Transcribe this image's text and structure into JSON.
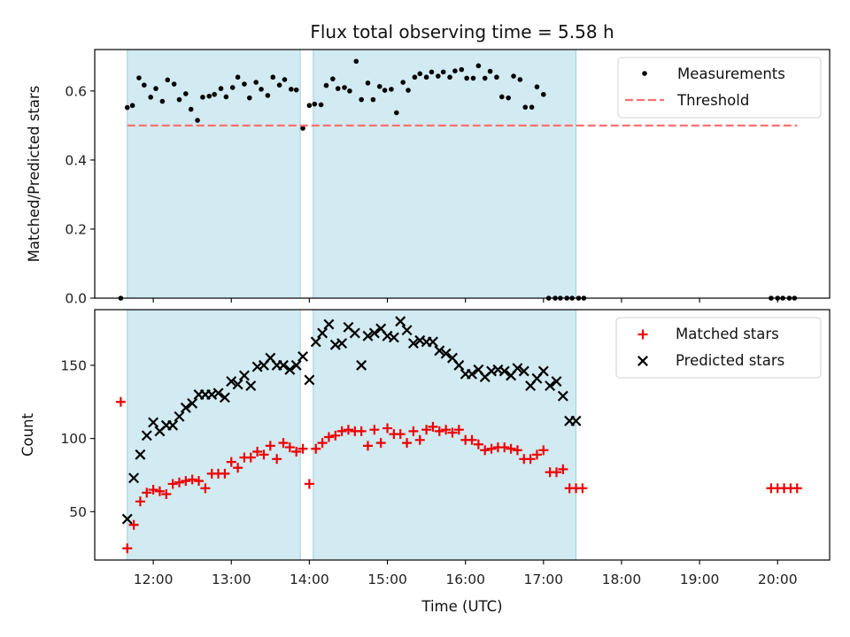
{
  "chart_data": [
    {
      "type": "scatter",
      "title": "Flux total observing time = 5.58 h",
      "xlabel": "",
      "ylabel": "Matched/Predicted stars",
      "xlim": [
        "11:15",
        "20:40"
      ],
      "ylim": [
        0,
        0.72
      ],
      "y_ticks": [
        0.0,
        0.2,
        0.4,
        0.6
      ],
      "y_tick_labels": [
        "0.0",
        "0.2",
        "0.4",
        "0.6"
      ],
      "shaded_intervals": [
        [
          "11:40",
          "13:53"
        ],
        [
          "14:03",
          "17:25"
        ]
      ],
      "shade_color": "#add8e6",
      "legend_position": "top-right",
      "series": [
        {
          "name": "Measurements",
          "marker": "dot",
          "color": "#000000",
          "x": [
            "11:35",
            "11:40",
            "11:44",
            "11:49",
            "11:53",
            "11:58",
            "12:02",
            "12:07",
            "12:11",
            "12:16",
            "12:20",
            "12:25",
            "12:29",
            "12:34",
            "12:38",
            "12:43",
            "12:47",
            "12:52",
            "12:56",
            "13:01",
            "13:05",
            "13:10",
            "13:14",
            "13:19",
            "13:23",
            "13:28",
            "13:32",
            "13:37",
            "13:41",
            "13:46",
            "13:50",
            "13:55",
            "14:00",
            "14:04",
            "14:09",
            "14:13",
            "14:18",
            "14:22",
            "14:27",
            "14:31",
            "14:36",
            "14:40",
            "14:45",
            "14:49",
            "14:54",
            "14:58",
            "15:03",
            "15:07",
            "15:12",
            "15:16",
            "15:21",
            "15:25",
            "15:30",
            "15:34",
            "15:39",
            "15:43",
            "15:48",
            "15:52",
            "15:57",
            "16:01",
            "16:06",
            "16:10",
            "16:15",
            "16:19",
            "16:24",
            "16:28",
            "16:33",
            "16:37",
            "16:42",
            "16:46",
            "16:51",
            "16:55",
            "17:00",
            "17:04",
            "17:09",
            "17:13",
            "17:18",
            "17:22",
            "17:27",
            "17:31",
            "19:55",
            "20:00",
            "20:04",
            "20:09",
            "20:13"
          ],
          "y": [
            0.0,
            0.552,
            0.558,
            0.638,
            0.617,
            0.582,
            0.607,
            0.57,
            0.632,
            0.62,
            0.575,
            0.592,
            0.547,
            0.515,
            0.582,
            0.585,
            0.59,
            0.607,
            0.583,
            0.61,
            0.64,
            0.62,
            0.58,
            0.625,
            0.605,
            0.587,
            0.64,
            0.617,
            0.633,
            0.605,
            0.603,
            0.492,
            0.558,
            0.562,
            0.56,
            0.616,
            0.635,
            0.607,
            0.61,
            0.6,
            0.686,
            0.575,
            0.623,
            0.575,
            0.613,
            0.602,
            0.605,
            0.537,
            0.625,
            0.602,
            0.64,
            0.65,
            0.64,
            0.655,
            0.643,
            0.655,
            0.64,
            0.658,
            0.662,
            0.637,
            0.637,
            0.673,
            0.637,
            0.657,
            0.64,
            0.583,
            0.58,
            0.643,
            0.633,
            0.553,
            0.553,
            0.612,
            0.59,
            0.0,
            0.0,
            0.0,
            0.0,
            0.0,
            0.0,
            0.0,
            0.0,
            0.0,
            0.0,
            0.0,
            0.0
          ]
        },
        {
          "name": "Threshold",
          "marker": "dashed-line",
          "color": "#ff7070",
          "x": [
            "11:40",
            "20:15"
          ],
          "y": [
            0.5,
            0.5
          ]
        }
      ]
    },
    {
      "type": "scatter",
      "title": "",
      "xlabel": "Time (UTC)",
      "ylabel": "Count",
      "xlim": [
        "11:15",
        "20:40"
      ],
      "ylim": [
        17,
        188
      ],
      "y_ticks": [
        50,
        100,
        150
      ],
      "y_tick_labels": [
        "50",
        "100",
        "150"
      ],
      "x_ticks": [
        "12:00",
        "13:00",
        "14:00",
        "15:00",
        "16:00",
        "17:00",
        "18:00",
        "19:00",
        "20:00"
      ],
      "x_tick_labels": [
        "12:00",
        "13:00",
        "14:00",
        "15:00",
        "16:00",
        "17:00",
        "18:00",
        "19:00",
        "20:00"
      ],
      "shaded_intervals": [
        [
          "11:40",
          "13:53"
        ],
        [
          "14:03",
          "17:25"
        ]
      ],
      "shade_color": "#add8e6",
      "legend_position": "top-right",
      "series": [
        {
          "name": "Matched stars",
          "marker": "plus",
          "color": "#ee0000",
          "x": [
            "11:35",
            "11:40",
            "11:45",
            "11:50",
            "11:55",
            "12:00",
            "12:05",
            "12:10",
            "12:15",
            "12:20",
            "12:25",
            "12:30",
            "12:35",
            "12:40",
            "12:45",
            "12:50",
            "12:55",
            "13:00",
            "13:05",
            "13:10",
            "13:15",
            "13:20",
            "13:25",
            "13:30",
            "13:35",
            "13:40",
            "13:45",
            "13:50",
            "13:55",
            "14:00",
            "14:05",
            "14:10",
            "14:15",
            "14:20",
            "14:25",
            "14:30",
            "14:35",
            "14:40",
            "14:45",
            "14:50",
            "14:55",
            "15:00",
            "15:05",
            "15:10",
            "15:15",
            "15:20",
            "15:25",
            "15:30",
            "15:35",
            "15:40",
            "15:45",
            "15:50",
            "15:55",
            "16:00",
            "16:05",
            "16:10",
            "16:15",
            "16:20",
            "16:25",
            "16:30",
            "16:35",
            "16:40",
            "16:45",
            "16:50",
            "16:55",
            "17:00",
            "17:05",
            "17:10",
            "17:15",
            "17:20",
            "17:25",
            "17:30",
            "19:55",
            "20:00",
            "20:05",
            "20:10",
            "20:15"
          ],
          "y": [
            125,
            25,
            41,
            57,
            63,
            65,
            64,
            62,
            69,
            70,
            71,
            72,
            71,
            66,
            76,
            76,
            76,
            84,
            80,
            87,
            87,
            91,
            89,
            95,
            86,
            97,
            94,
            91,
            93,
            69,
            93,
            97,
            101,
            102,
            105,
            106,
            105,
            105,
            95,
            106,
            97,
            107,
            103,
            103,
            97,
            105,
            99,
            106,
            108,
            105,
            106,
            104,
            106,
            99,
            99,
            96,
            92,
            93,
            94,
            94,
            93,
            92,
            86,
            86,
            89,
            92,
            77,
            77,
            79,
            66,
            66,
            66,
            66,
            66,
            66,
            66,
            66
          ]
        },
        {
          "name": "Predicted stars",
          "marker": "x",
          "color": "#000000",
          "x": [
            "11:40",
            "11:45",
            "11:50",
            "11:55",
            "12:00",
            "12:05",
            "12:10",
            "12:15",
            "12:20",
            "12:25",
            "12:30",
            "12:35",
            "12:40",
            "12:45",
            "12:50",
            "12:55",
            "13:00",
            "13:05",
            "13:10",
            "13:15",
            "13:20",
            "13:25",
            "13:30",
            "13:35",
            "13:40",
            "13:45",
            "13:50",
            "13:55",
            "14:00",
            "14:05",
            "14:10",
            "14:15",
            "14:20",
            "14:25",
            "14:30",
            "14:35",
            "14:40",
            "14:45",
            "14:50",
            "14:55",
            "15:00",
            "15:05",
            "15:10",
            "15:15",
            "15:20",
            "15:25",
            "15:30",
            "15:35",
            "15:40",
            "15:45",
            "15:50",
            "15:55",
            "16:00",
            "16:05",
            "16:10",
            "16:15",
            "16:20",
            "16:25",
            "16:30",
            "16:35",
            "16:40",
            "16:45",
            "16:50",
            "16:55",
            "17:00",
            "17:05",
            "17:10",
            "17:15",
            "17:20",
            "17:25"
          ],
          "y": [
            45,
            73,
            89,
            102,
            111,
            105,
            109,
            109,
            115,
            121,
            124,
            130,
            130,
            130,
            131,
            128,
            139,
            137,
            143,
            136,
            149,
            150,
            155,
            150,
            150,
            147,
            150,
            156,
            140,
            166,
            172,
            178,
            164,
            165,
            176,
            172,
            150,
            170,
            172,
            175,
            170,
            169,
            180,
            174,
            165,
            167,
            166,
            166,
            160,
            158,
            155,
            150,
            144,
            144,
            147,
            142,
            146,
            147,
            146,
            143,
            148,
            146,
            136,
            141,
            146,
            136,
            139,
            129,
            112,
            112
          ]
        }
      ]
    }
  ]
}
